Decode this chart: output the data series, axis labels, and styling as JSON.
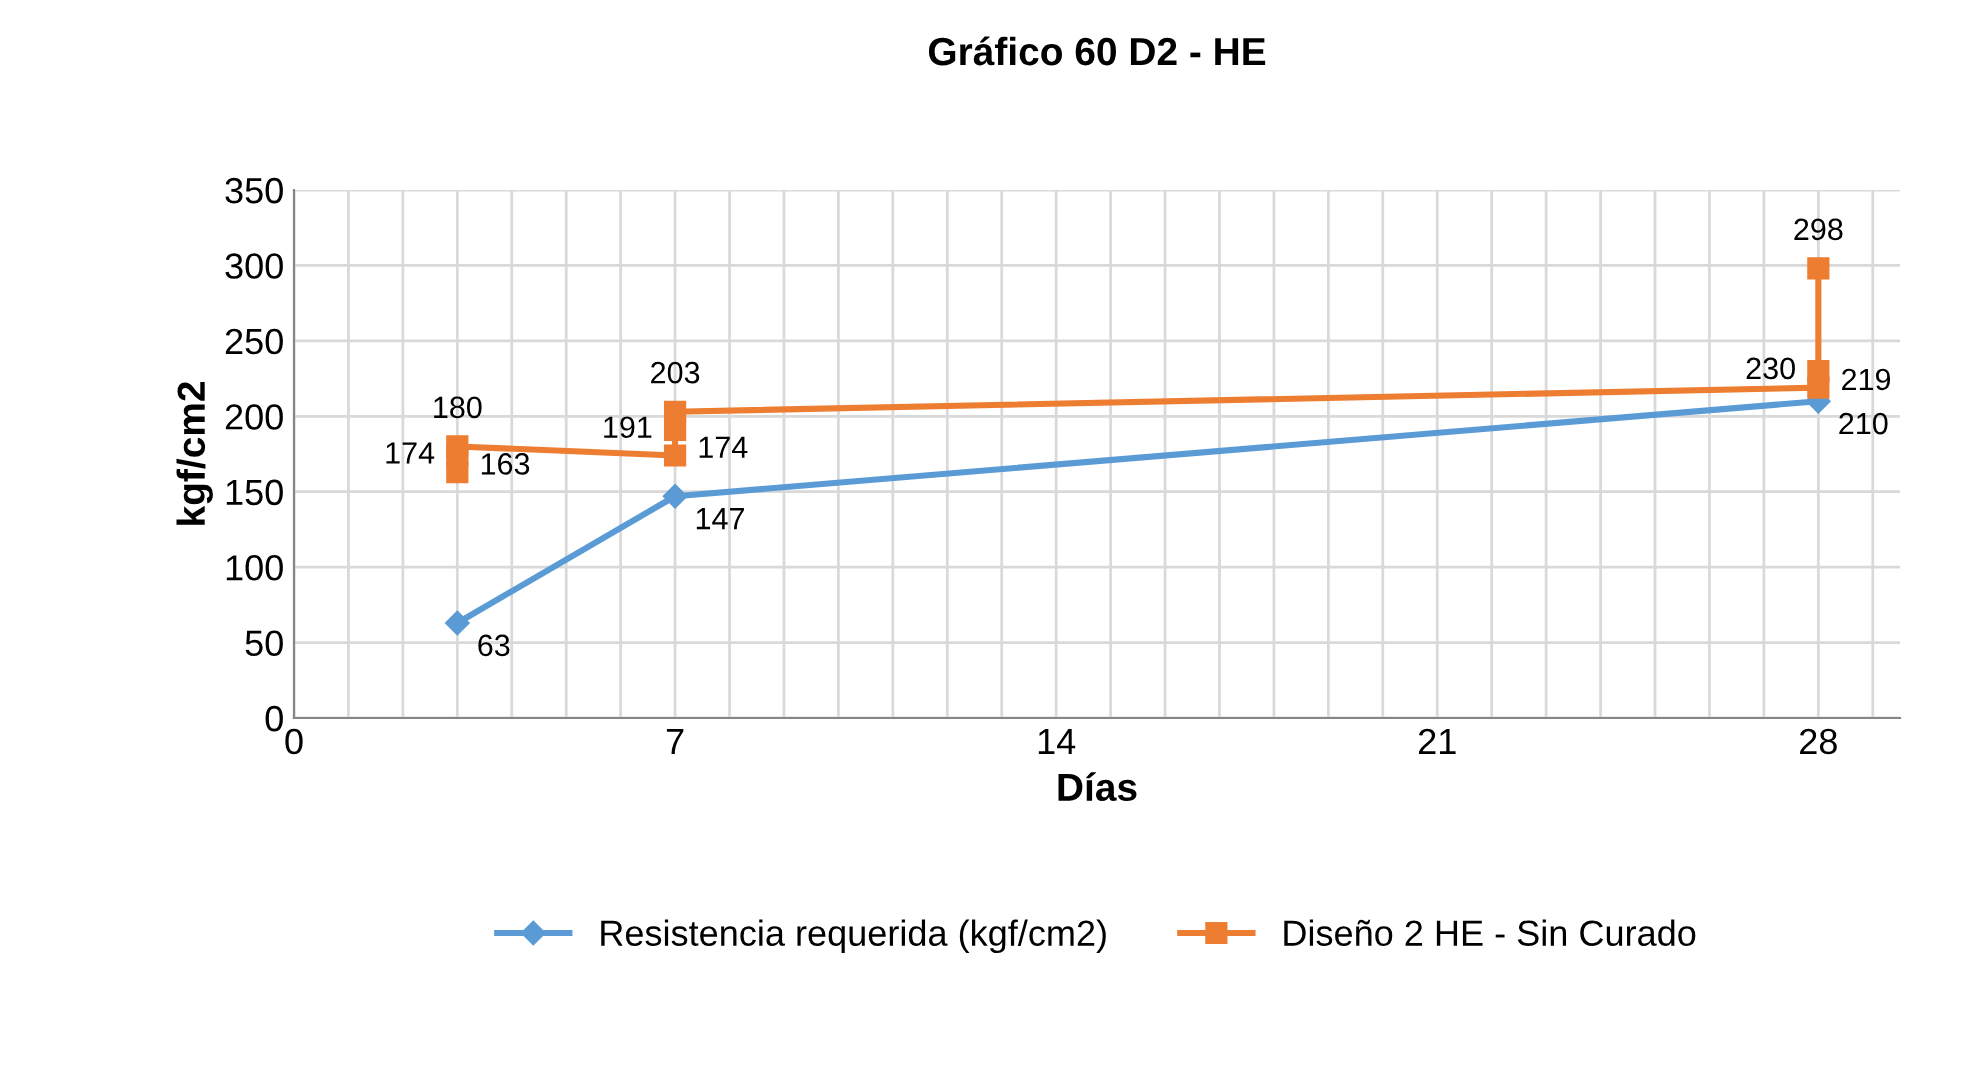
{
  "chart_data": {
    "type": "line",
    "title": "Gráfico 60 D2 - HE",
    "xlabel": "Días",
    "ylabel": "kgf/cm2",
    "xlim": [
      0,
      29.5
    ],
    "xticks": [
      0,
      {
        "value": 1,
        "label": null
      },
      {
        "value": 2,
        "label": null
      },
      {
        "value": 3,
        "label": null
      },
      {
        "value": 4,
        "label": null
      },
      {
        "value": 5,
        "label": null
      },
      {
        "value": 6,
        "label": null
      },
      7,
      {
        "value": 8,
        "label": null
      },
      {
        "value": 9,
        "label": null
      },
      {
        "value": 10,
        "label": null
      },
      {
        "value": 11,
        "label": null
      },
      {
        "value": 12,
        "label": null
      },
      {
        "value": 13,
        "label": null
      },
      14,
      {
        "value": 15,
        "label": null
      },
      {
        "value": 16,
        "label": null
      },
      {
        "value": 17,
        "label": null
      },
      {
        "value": 18,
        "label": null
      },
      {
        "value": 19,
        "label": null
      },
      {
        "value": 20,
        "label": null
      },
      21,
      {
        "value": 22,
        "label": null
      },
      {
        "value": 23,
        "label": null
      },
      {
        "value": 24,
        "label": null
      },
      {
        "value": 25,
        "label": null
      },
      {
        "value": 26,
        "label": null
      },
      {
        "value": 27,
        "label": null
      },
      28,
      {
        "value": 29,
        "label": null
      }
    ],
    "ylim": [
      0,
      350
    ],
    "yticks": [
      0,
      50,
      100,
      150,
      200,
      250,
      300,
      350
    ],
    "grid": true,
    "legend": "bottom",
    "data_labels": true,
    "series": [
      {
        "name": "Resistencia requerida (kgf/cm2)",
        "color": "#5b9bd5",
        "marker": "diamond",
        "x": [
          3,
          7,
          28
        ],
        "values": [
          63,
          147,
          210
        ]
      },
      {
        "name": "Diseño 2 HE - Sin Curado",
        "color": "#ed7d31",
        "marker": "square",
        "x": [
          3,
          3,
          3,
          7,
          7,
          7,
          28,
          28,
          28
        ],
        "values": [
          163,
          174,
          180,
          174,
          191,
          203,
          219,
          298,
          230
        ]
      }
    ]
  }
}
